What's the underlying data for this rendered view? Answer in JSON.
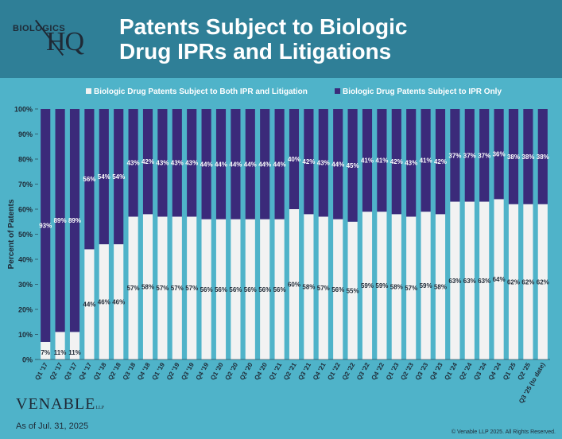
{
  "header": {
    "logo_top": "BIOLOGICS",
    "logo_main": "HQ",
    "title_line1": "Patents Subject to Biologic",
    "title_line2": "Drug IPRs and Litigations"
  },
  "colors": {
    "header_bg": "#2f7f97",
    "page_bg": "#4fb3c9",
    "both_series": "#f2f2f2",
    "ipr_only_series": "#3b2a7a",
    "text_dark": "#1f2a36"
  },
  "chart_data": {
    "type": "bar",
    "stacked": true,
    "percent_stacked": true,
    "title": "",
    "xlabel": "",
    "ylabel": "Percent of Patents",
    "ylim": [
      0,
      100
    ],
    "yticks": [
      "0%",
      "10%",
      "20%",
      "30%",
      "40%",
      "50%",
      "60%",
      "70%",
      "80%",
      "90%",
      "100%"
    ],
    "legend_position": "top",
    "categories": [
      "Q1 '17",
      "Q2 '17",
      "Q3 '17",
      "Q4 '17",
      "Q1 '18",
      "Q2 '18",
      "Q3 '18",
      "Q4 '18",
      "Q1 '19",
      "Q2 '19",
      "Q3 '19",
      "Q4 '19",
      "Q1 '20",
      "Q2 '20",
      "Q3 '20",
      "Q4 '20",
      "Q1 '21",
      "Q2 '21",
      "Q3 '21",
      "Q4 '21",
      "Q1 '22",
      "Q2 '22",
      "Q3 '22",
      "Q4 '22",
      "Q1 '23",
      "Q2 '23",
      "Q3 '23",
      "Q4 '23",
      "Q1 '24",
      "Q2 '24",
      "Q3 '24",
      "Q4 '24",
      "Q1 '25",
      "Q2 '25",
      "Q3 '25 (to date)"
    ],
    "series": [
      {
        "name": "Biologic Drug Patents Subject to Both IPR and Litigation",
        "values": [
          7,
          11,
          11,
          44,
          46,
          46,
          57,
          58,
          57,
          57,
          57,
          56,
          56,
          56,
          56,
          56,
          56,
          60,
          58,
          57,
          56,
          55,
          59,
          59,
          58,
          57,
          59,
          58,
          63,
          63,
          63,
          64,
          62,
          62,
          62
        ],
        "labels": [
          "7%",
          "11%",
          "11%",
          "44%",
          "46%",
          "46%",
          "57%",
          "58%",
          "57%",
          "57%",
          "57%",
          "56%",
          "56%",
          "56%",
          "56%",
          "56%",
          "56%",
          "60%",
          "58%",
          "57%",
          "56%",
          "55%",
          "59%",
          "59%",
          "58%",
          "57%",
          "59%",
          "58%",
          "63%",
          "63%",
          "63%",
          "64%",
          "62%",
          "62%",
          "62%"
        ]
      },
      {
        "name": "Biologic Drug Patents Subject to IPR Only",
        "values": [
          93,
          89,
          89,
          56,
          54,
          54,
          43,
          42,
          43,
          43,
          43,
          44,
          44,
          44,
          44,
          44,
          44,
          40,
          42,
          43,
          44,
          45,
          41,
          41,
          42,
          43,
          41,
          42,
          37,
          37,
          37,
          36,
          38,
          38,
          38
        ],
        "labels": [
          "93%",
          "89%",
          "89%",
          "56%",
          "54%",
          "54%",
          "43%",
          "42%",
          "43%",
          "43%",
          "43%",
          "44%",
          "44%",
          "44%",
          "44%",
          "44%",
          "44%",
          "40%",
          "42%",
          "43%",
          "44%",
          "45%",
          "41%",
          "41%",
          "42%",
          "43%",
          "41%",
          "42%",
          "37%",
          "37%",
          "37%",
          "36%",
          "38%",
          "38%",
          "38%"
        ]
      }
    ]
  },
  "footer": {
    "brand": "VENABLE",
    "brand_suffix": "LLP",
    "as_of": "As of Jul. 31, 2025",
    "copyright": "© Venable LLP 2025. All Rights Reserved."
  }
}
